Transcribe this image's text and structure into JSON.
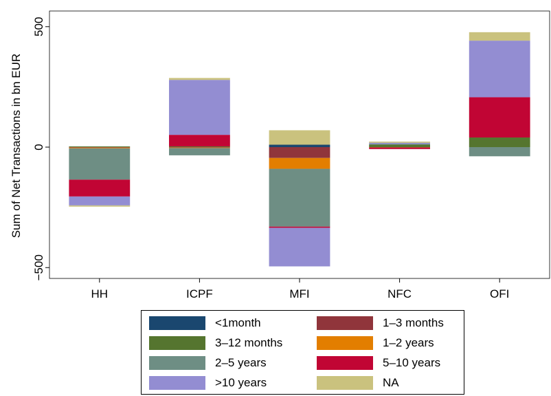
{
  "chart_data": {
    "type": "bar",
    "stacked": true,
    "ylabel": "Sum of Net Transactions in bn EUR",
    "xlabel": "",
    "ylim": [
      -545,
      565
    ],
    "yticks": [
      -500,
      0,
      500
    ],
    "ytick_labels": [
      "−500",
      "0",
      "500"
    ],
    "categories": [
      "HH",
      "ICPF",
      "MFI",
      "NFC",
      "OFI"
    ],
    "grid": false,
    "legend_position": "bottom",
    "series": [
      {
        "name": "<1month",
        "color": "#1a476f",
        "values": [
          0,
          0,
          10,
          0,
          0
        ]
      },
      {
        "name": "1–3 months",
        "color": "#90353b",
        "values": [
          -2,
          -2,
          -45,
          -1,
          0
        ]
      },
      {
        "name": "3–12 months",
        "color": "#55752f",
        "values": [
          3,
          3,
          0,
          10,
          40
        ]
      },
      {
        "name": "1–2 years",
        "color": "#e37e00",
        "values": [
          -3,
          -2,
          -45,
          -1,
          0
        ]
      },
      {
        "name": "2–5 years",
        "color": "#6e8e84",
        "values": [
          -130,
          -30,
          -240,
          3,
          -38
        ]
      },
      {
        "name": "5–10 years",
        "color": "#c10534",
        "values": [
          -70,
          48,
          -5,
          -6,
          167
        ]
      },
      {
        "name": ">10 years",
        "color": "#938dd2",
        "values": [
          -37,
          228,
          -160,
          5,
          235
        ]
      },
      {
        "name": "NA",
        "color": "#cac27e",
        "values": [
          -5,
          8,
          60,
          5,
          35
        ]
      }
    ]
  }
}
